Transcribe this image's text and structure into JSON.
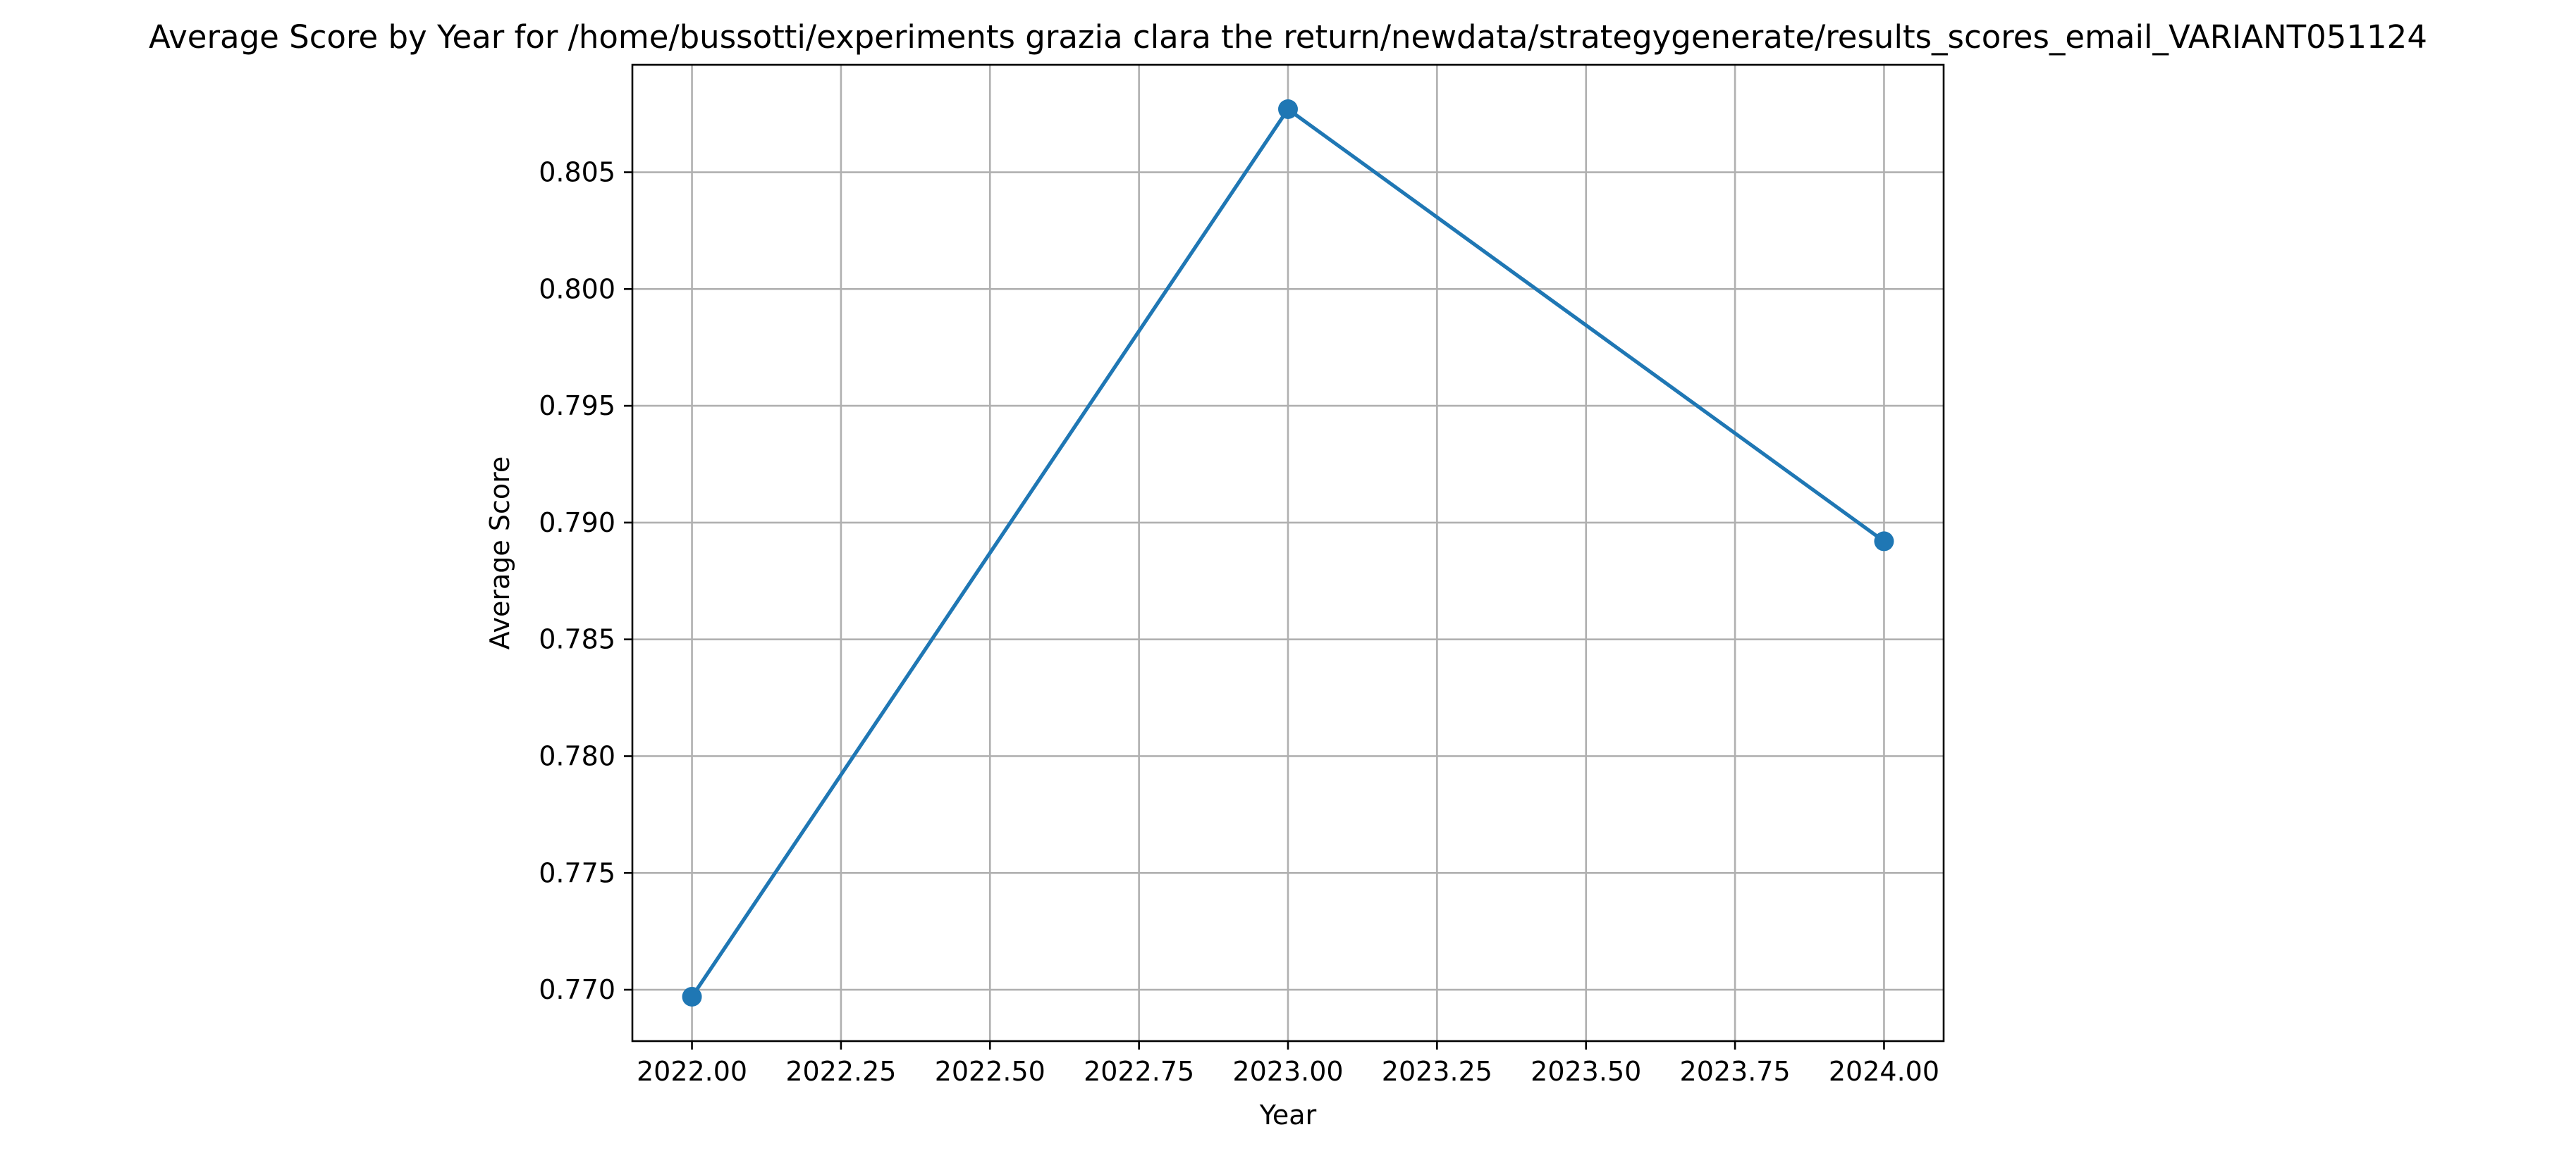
{
  "chart_data": {
    "type": "line",
    "title": "Average Score by Year for /home/bussotti/experiments grazia clara the return/newdata/strategygenerate/results_scores_email_VARIANT051124",
    "xlabel": "Year",
    "ylabel": "Average Score",
    "x": [
      2022,
      2023,
      2024
    ],
    "series": [
      {
        "values": [
          0.7697,
          0.8077,
          0.7892
        ],
        "color": "#1f77b4",
        "marker": "circle"
      }
    ],
    "xlim": [
      2021.9,
      2024.1
    ],
    "ylim": [
      0.7678,
      0.8096
    ],
    "xticks": [
      2022.0,
      2022.25,
      2022.5,
      2022.75,
      2023.0,
      2023.25,
      2023.5,
      2023.75,
      2024.0
    ],
    "xtick_labels": [
      "2022.00",
      "2022.25",
      "2022.50",
      "2022.75",
      "2023.00",
      "2023.25",
      "2023.50",
      "2023.75",
      "2024.00"
    ],
    "yticks": [
      0.77,
      0.775,
      0.78,
      0.785,
      0.79,
      0.795,
      0.8,
      0.805
    ],
    "ytick_labels": [
      "0.770",
      "0.775",
      "0.780",
      "0.785",
      "0.790",
      "0.795",
      "0.800",
      "0.805"
    ],
    "grid": true,
    "legend": "none"
  }
}
